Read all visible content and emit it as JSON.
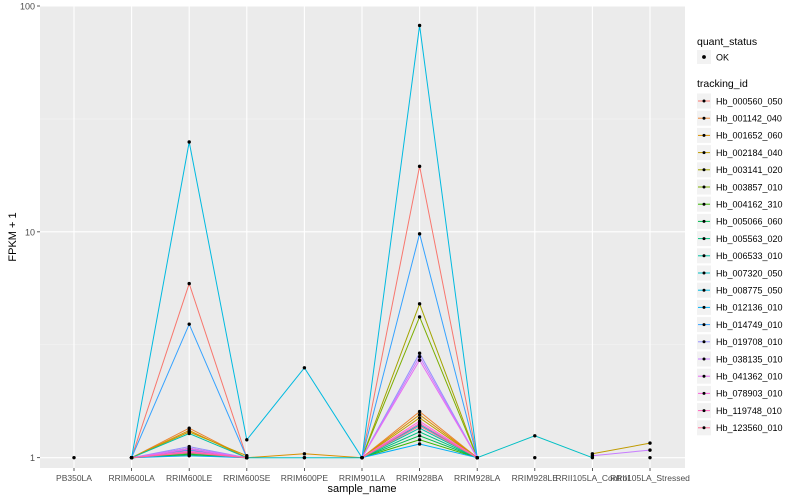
{
  "chart_data": {
    "type": "line",
    "title": "",
    "xlabel": "sample_name",
    "ylabel": "FPKM + 1",
    "yscale": "log10",
    "ylim": [
      0.9,
      100
    ],
    "yticks": [
      {
        "value": 1,
        "label": "1"
      },
      {
        "value": 10,
        "label": "10"
      },
      {
        "value": 100,
        "label": "100"
      }
    ],
    "categories": [
      "PB350LA",
      "RRIM600LA",
      "RRIM600LE",
      "RRIM600SE",
      "RRIM600PE",
      "RRIM901LA",
      "RRIM928BA",
      "RRIM928LA",
      "RRIM928LE",
      "RRII105LA_Control",
      "RRII105LA_Stressed"
    ],
    "tick_labels": [
      "PB350LA",
      "RRIM600LA",
      "RRIM600LE",
      "RRIM600SE",
      "RRIM600PE",
      "RRIM901LA",
      "RRIM928BA",
      "RRIM928LA",
      "RRIM928LE",
      "RRII105LA_Control",
      "RRII105LA_Stressed"
    ],
    "grid": true,
    "legend": {
      "placement": "right",
      "point_title": "quant_status",
      "point_entries": [
        "OK"
      ],
      "line_title": "tracking_id"
    },
    "series": [
      {
        "name": "Hb_000560_050",
        "color": "#F8766D",
        "values": [
          null,
          1,
          5.9,
          1,
          null,
          1,
          19.5,
          1,
          null,
          null,
          null
        ]
      },
      {
        "name": "Hb_001142_040",
        "color": "#EA8331",
        "values": [
          null,
          1,
          1.35,
          1,
          null,
          1,
          1.6,
          1,
          null,
          null,
          null
        ]
      },
      {
        "name": "Hb_001652_060",
        "color": "#D89000",
        "values": [
          null,
          1,
          1.32,
          1,
          1.04,
          1,
          1.55,
          1,
          null,
          null,
          null
        ]
      },
      {
        "name": "Hb_002184_040",
        "color": "#C09B00",
        "values": [
          null,
          1,
          1.3,
          1.02,
          null,
          1,
          1.5,
          1,
          null,
          1.04,
          1.16
        ]
      },
      {
        "name": "Hb_003141_020",
        "color": "#A3A500",
        "values": [
          null,
          1,
          1.1,
          1,
          null,
          1,
          4.8,
          1,
          null,
          null,
          null
        ]
      },
      {
        "name": "Hb_003857_010",
        "color": "#7CAE00",
        "values": [
          null,
          1,
          1.05,
          1,
          null,
          1,
          4.2,
          1,
          null,
          null,
          null
        ]
      },
      {
        "name": "Hb_004162_310",
        "color": "#39B600",
        "values": [
          null,
          1,
          1.03,
          1,
          null,
          1,
          1.2,
          1,
          null,
          null,
          null
        ]
      },
      {
        "name": "Hb_005066_060",
        "color": "#00BB4E",
        "values": [
          null,
          1,
          1.04,
          1,
          null,
          1,
          1.25,
          1,
          null,
          null,
          null
        ]
      },
      {
        "name": "Hb_005563_020",
        "color": "#00BF7D",
        "values": [
          null,
          1,
          1.06,
          1,
          null,
          1,
          1.3,
          1,
          null,
          null,
          null
        ]
      },
      {
        "name": "Hb_006533_010",
        "color": "#00C1A3",
        "values": [
          null,
          1,
          1.28,
          1,
          null,
          1,
          1.35,
          1,
          null,
          null,
          null
        ]
      },
      {
        "name": "Hb_007320_050",
        "color": "#00BFC4",
        "values": [
          null,
          1,
          1.08,
          1,
          1,
          1,
          1.4,
          1,
          1.25,
          1,
          null
        ]
      },
      {
        "name": "Hb_008775_050",
        "color": "#00BAE0",
        "values": [
          null,
          1,
          25,
          1.2,
          2.5,
          1,
          82,
          1,
          null,
          null,
          null
        ]
      },
      {
        "name": "Hb_012136_010",
        "color": "#00B0F6",
        "values": [
          null,
          1,
          1.02,
          1,
          null,
          1,
          1.15,
          1,
          null,
          null,
          null
        ]
      },
      {
        "name": "Hb_014749_010",
        "color": "#35A2FF",
        "values": [
          null,
          1,
          3.9,
          1,
          null,
          1,
          9.8,
          1,
          null,
          null,
          null
        ]
      },
      {
        "name": "Hb_019708_010",
        "color": "#9590FF",
        "values": [
          null,
          1,
          1.12,
          1,
          null,
          1,
          2.9,
          1,
          null,
          null,
          null
        ]
      },
      {
        "name": "Hb_038135_010",
        "color": "#C77CFF",
        "values": [
          null,
          1,
          1.1,
          1,
          null,
          1,
          2.8,
          1,
          null,
          1.02,
          1.08
        ]
      },
      {
        "name": "Hb_041362_010",
        "color": "#E76BF3",
        "values": [
          null,
          1,
          1.09,
          1,
          null,
          1,
          2.7,
          1,
          null,
          null,
          null
        ]
      },
      {
        "name": "Hb_078903_010",
        "color": "#FA62DB",
        "values": [
          null,
          1,
          1.07,
          1,
          null,
          1,
          1.45,
          1,
          null,
          null,
          null
        ]
      },
      {
        "name": "Hb_119748_010",
        "color": "#FF62BC",
        "values": [
          null,
          1,
          1.06,
          1,
          null,
          1,
          1.42,
          1,
          null,
          null,
          null
        ]
      },
      {
        "name": "Hb_123560_010",
        "color": "#FF6C91",
        "values": [
          null,
          1,
          1.05,
          1,
          null,
          1,
          1.38,
          1,
          null,
          null,
          null
        ]
      }
    ],
    "extra_points": [
      {
        "category": "PB350LA",
        "value": 1
      },
      {
        "category": "RRIM600PE",
        "value": 1
      },
      {
        "category": "RRIM928LE",
        "value": 1
      },
      {
        "category": "RRII105LA_Stressed",
        "value": 1
      }
    ]
  }
}
